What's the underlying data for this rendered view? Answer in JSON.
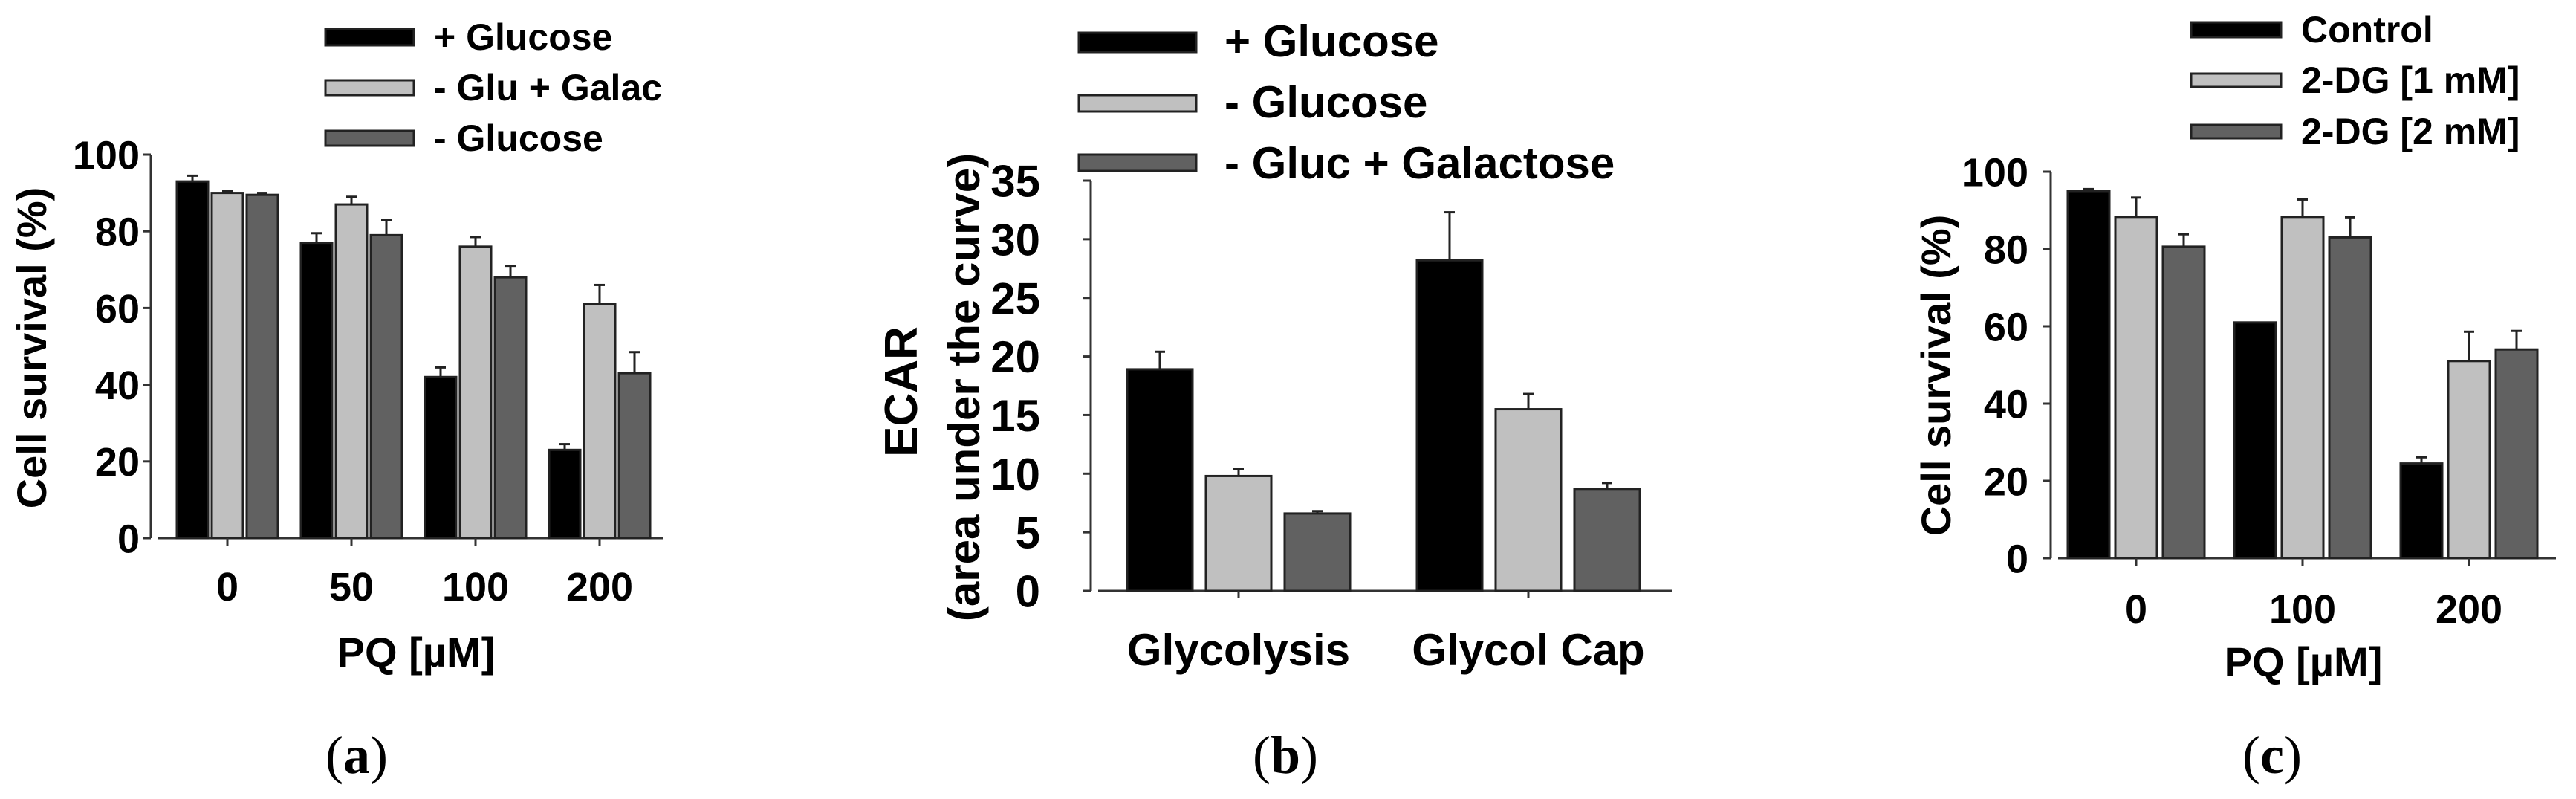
{
  "colors": {
    "black": "#000000",
    "light_gray": "#c0c0c0",
    "dark_gray": "#616161",
    "outline": "#222222"
  },
  "panels": [
    {
      "caption_open": "(",
      "caption_letter": "a",
      "caption_close": ")"
    },
    {
      "caption_open": "(",
      "caption_letter": "b",
      "caption_close": ")"
    },
    {
      "caption_open": "(",
      "caption_letter": "c",
      "caption_close": ")"
    }
  ],
  "chart_data": [
    {
      "panel": "a",
      "type": "bar",
      "title": "",
      "xlabel": "PQ [µM]",
      "ylabel": "Cell survival (%)",
      "ylim": [
        0,
        100
      ],
      "yticks": [
        "0",
        "20",
        "40",
        "60",
        "80",
        "100"
      ],
      "categories": [
        "0",
        "50",
        "100",
        "200"
      ],
      "legend_position": "top-right",
      "grid": false,
      "series": [
        {
          "name": "+ Glucose",
          "color": "#000000",
          "values": [
            93,
            77,
            42,
            23
          ],
          "errors": [
            1.5,
            2.5,
            2.5,
            1.5
          ]
        },
        {
          "name": "- Glu + Galac",
          "color": "#c0c0c0",
          "values": [
            90,
            87,
            76,
            61
          ],
          "errors": [
            0.5,
            2,
            2.5,
            5
          ]
        },
        {
          "name": "- Glucose",
          "color": "#616161",
          "values": [
            89.5,
            79,
            68,
            43
          ],
          "errors": [
            0.5,
            4,
            3,
            5.5
          ]
        }
      ]
    },
    {
      "panel": "b",
      "type": "bar",
      "title": "",
      "xlabel": "",
      "ylabel": "ECAR",
      "ylabel2": "(area under the curve)",
      "ylim": [
        0,
        35
      ],
      "yticks": [
        "0",
        "5",
        "10",
        "15",
        "20",
        "25",
        "30",
        "35"
      ],
      "categories": [
        "Glycolysis",
        "Glycol Cap"
      ],
      "legend_position": "top",
      "grid": false,
      "series": [
        {
          "name": "+ Glucose",
          "color": "#000000",
          "values": [
            18.9,
            28.2
          ],
          "errors": [
            1.5,
            4.1
          ]
        },
        {
          "name": "- Glucose",
          "color": "#c0c0c0",
          "values": [
            9.8,
            15.5
          ],
          "errors": [
            0.6,
            1.3
          ]
        },
        {
          "name": "- Gluc + Galactose",
          "color": "#616161",
          "values": [
            6.6,
            8.7
          ],
          "errors": [
            0.2,
            0.5
          ]
        }
      ]
    },
    {
      "panel": "c",
      "type": "bar",
      "title": "",
      "xlabel": "PQ [µM]",
      "ylabel": "Cell survival (%)",
      "ylim": [
        0,
        100
      ],
      "yticks": [
        "0",
        "20",
        "40",
        "60",
        "80",
        "100"
      ],
      "categories": [
        "0",
        "100",
        "200"
      ],
      "legend_position": "top-right",
      "grid": false,
      "series": [
        {
          "name": "Control",
          "color": "#000000",
          "values": [
            95,
            61,
            24.5
          ],
          "errors": [
            0.5,
            0,
            1.6
          ]
        },
        {
          "name": "2-DG [1 mM]",
          "color": "#c0c0c0",
          "values": [
            88.3,
            88.3,
            51
          ],
          "errors": [
            5,
            4.5,
            7.6
          ]
        },
        {
          "name": "2-DG [2 mM]",
          "color": "#616161",
          "values": [
            80.6,
            83,
            54
          ],
          "errors": [
            3.2,
            5.2,
            4.8
          ]
        }
      ]
    }
  ]
}
